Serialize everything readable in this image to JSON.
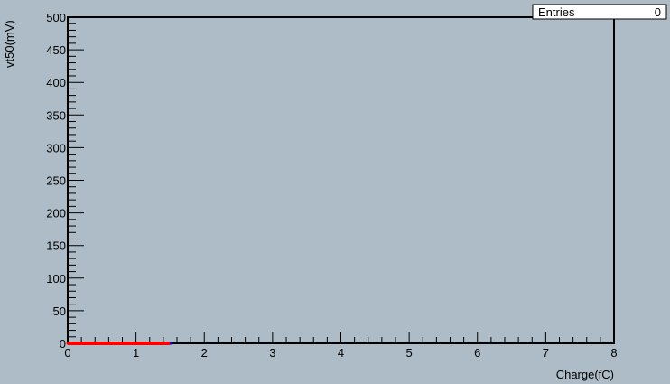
{
  "chart_data": {
    "type": "scatter",
    "title": "",
    "xlabel": "Charge(fC)",
    "ylabel": "vt50(mV)",
    "xlim": [
      0,
      8
    ],
    "ylim": [
      0,
      500
    ],
    "x_ticks": [
      "0",
      "1",
      "2",
      "3",
      "4",
      "5",
      "6",
      "7",
      "8"
    ],
    "y_ticks": [
      "0",
      "50",
      "100",
      "150",
      "200",
      "250",
      "300",
      "350",
      "400",
      "450",
      "500"
    ],
    "grid": false,
    "series": [
      {
        "color": "#ff0000",
        "x": [
          0,
          0.25,
          0.5,
          0.75,
          1.0,
          1.25,
          1.5
        ],
        "y": [
          0,
          0,
          0,
          0,
          0,
          0,
          0
        ]
      }
    ],
    "stats_box": {
      "label": "Entries",
      "value": "0"
    },
    "colors": {
      "background": "#adbcc6",
      "axis": "#000000",
      "series": "#ff0000",
      "endpoint": "#0000ff"
    }
  }
}
